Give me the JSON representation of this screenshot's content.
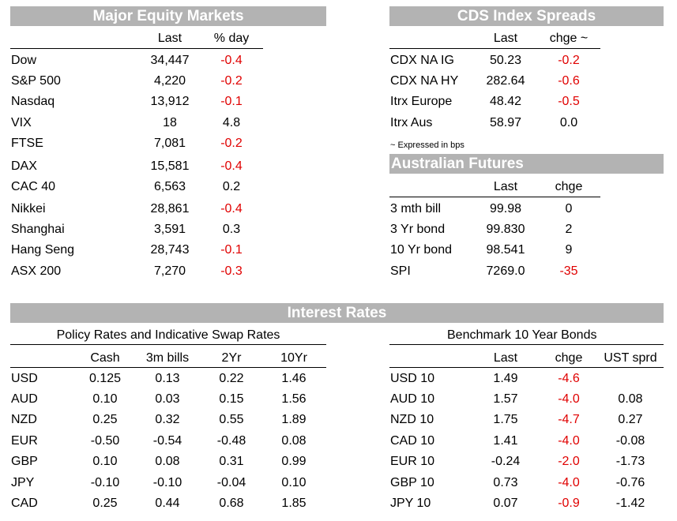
{
  "equity": {
    "title": "Major Equity Markets",
    "headers": [
      "Last",
      "% day"
    ],
    "rows": [
      {
        "name": "Dow",
        "last": "34,447",
        "chg": "-0.4",
        "neg": true
      },
      {
        "name": "S&P 500",
        "last": "4,220",
        "chg": "-0.2",
        "neg": true
      },
      {
        "name": "Nasdaq",
        "last": "13,912",
        "chg": "-0.1",
        "neg": true
      },
      {
        "name": "VIX",
        "last": "18",
        "chg": "4.8",
        "neg": false
      },
      {
        "name": "FTSE",
        "last": "7,081",
        "chg": "-0.2",
        "neg": true
      },
      {
        "name": "DAX",
        "last": "15,581",
        "chg": "-0.4",
        "neg": true
      },
      {
        "name": "CAC 40",
        "last": "6,563",
        "chg": "0.2",
        "neg": false
      },
      {
        "name": "Nikkei",
        "last": "28,861",
        "chg": "-0.4",
        "neg": true
      },
      {
        "name": "Shanghai",
        "last": "3,591",
        "chg": "0.3",
        "neg": false
      },
      {
        "name": "Hang Seng",
        "last": "28,743",
        "chg": "-0.1",
        "neg": true
      },
      {
        "name": "ASX 200",
        "last": "7,270",
        "chg": "-0.3",
        "neg": true
      }
    ]
  },
  "cds": {
    "title": "CDS Index Spreads",
    "headers": [
      "Last",
      "chge ~"
    ],
    "rows": [
      {
        "name": "CDX NA IG",
        "last": "50.23",
        "chg": "-0.2",
        "neg": true
      },
      {
        "name": "CDX NA HY",
        "last": "282.64",
        "chg": "-0.6",
        "neg": true
      },
      {
        "name": "Itrx Europe",
        "last": "48.42",
        "chg": "-0.5",
        "neg": true
      },
      {
        "name": "Itrx Aus",
        "last": "58.97",
        "chg": "0.0",
        "neg": false
      }
    ],
    "note": "~ Expressed in bps"
  },
  "futures": {
    "title": "Australian Futures",
    "headers": [
      "Last",
      "chge"
    ],
    "rows": [
      {
        "name": "3 mth bill",
        "last": "99.98",
        "chg": "0",
        "neg": false
      },
      {
        "name": "3 Yr bond",
        "last": "99.830",
        "chg": "2",
        "neg": false
      },
      {
        "name": "10 Yr bond",
        "last": "98.541",
        "chg": "9",
        "neg": false
      },
      {
        "name": "SPI",
        "last": "7269.0",
        "chg": "-35",
        "neg": true
      }
    ]
  },
  "rates": {
    "title": "Interest Rates",
    "policy": {
      "subtitle": "Policy Rates and Indicative Swap Rates",
      "headers": [
        "Cash",
        "3m bills",
        "2Yr",
        "10Yr"
      ],
      "rows": [
        {
          "name": "USD",
          "vals": [
            "0.125",
            "0.13",
            "0.22",
            "1.46"
          ]
        },
        {
          "name": "AUD",
          "vals": [
            "0.10",
            "0.03",
            "0.15",
            "1.56"
          ]
        },
        {
          "name": "NZD",
          "vals": [
            "0.25",
            "0.32",
            "0.55",
            "1.89"
          ]
        },
        {
          "name": "EUR",
          "vals": [
            "-0.50",
            "-0.54",
            "-0.48",
            "0.08"
          ]
        },
        {
          "name": "GBP",
          "vals": [
            "0.10",
            "0.08",
            "0.31",
            "0.99"
          ]
        },
        {
          "name": "JPY",
          "vals": [
            "-0.10",
            "-0.10",
            "-0.04",
            "0.10"
          ]
        },
        {
          "name": "CAD",
          "vals": [
            "0.25",
            "0.44",
            "0.68",
            "1.85"
          ]
        }
      ]
    },
    "bonds": {
      "subtitle": "Benchmark 10 Year Bonds",
      "headers": [
        "Last",
        "chge",
        "UST sprd"
      ],
      "rows": [
        {
          "name": "USD 10",
          "last": "1.49",
          "chg": "-4.6",
          "neg": true,
          "sprd": ""
        },
        {
          "name": "AUD 10",
          "last": "1.57",
          "chg": "-4.0",
          "neg": true,
          "sprd": "0.08"
        },
        {
          "name": "NZD 10",
          "last": "1.75",
          "chg": "-4.7",
          "neg": true,
          "sprd": "0.27"
        },
        {
          "name": "CAD 10",
          "last": "1.41",
          "chg": "-4.0",
          "neg": true,
          "sprd": "-0.08"
        },
        {
          "name": "EUR 10",
          "last": "-0.24",
          "chg": "-2.0",
          "neg": true,
          "sprd": "-1.73"
        },
        {
          "name": "GBP 10",
          "last": "0.73",
          "chg": "-4.0",
          "neg": true,
          "sprd": "-0.76"
        },
        {
          "name": "JPY 10",
          "last": "0.07",
          "chg": "-0.9",
          "neg": true,
          "sprd": "-1.42"
        }
      ]
    }
  }
}
